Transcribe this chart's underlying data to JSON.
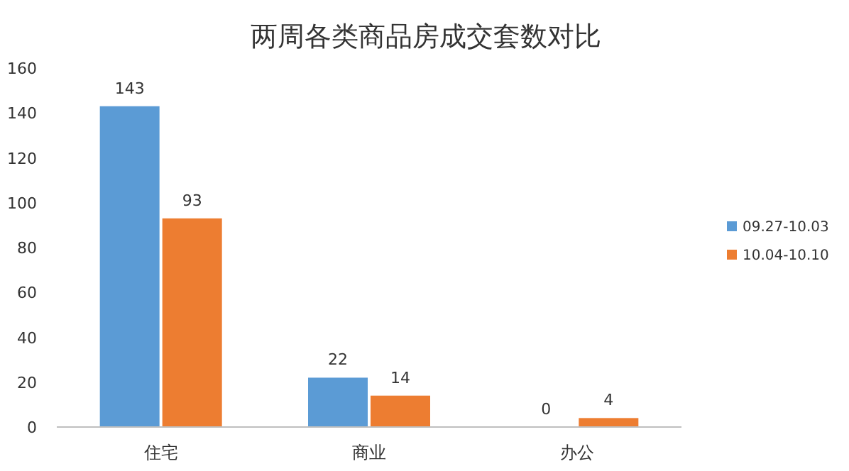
{
  "chart_data": {
    "type": "bar",
    "title": "两周各类商品房成交套数对比",
    "categories": [
      "住宅",
      "商业",
      "办公"
    ],
    "series": [
      {
        "name": "09.27-10.03",
        "color": "#5b9bd5",
        "values": [
          143,
          22,
          0
        ]
      },
      {
        "name": "10.04-10.10",
        "color": "#ed7d31",
        "values": [
          93,
          14,
          4
        ]
      }
    ],
    "ylim": [
      0,
      160
    ],
    "yticks": [
      0,
      20,
      40,
      60,
      80,
      100,
      120,
      140,
      160
    ],
    "data_labels": true,
    "legend": "right",
    "grid": false
  }
}
